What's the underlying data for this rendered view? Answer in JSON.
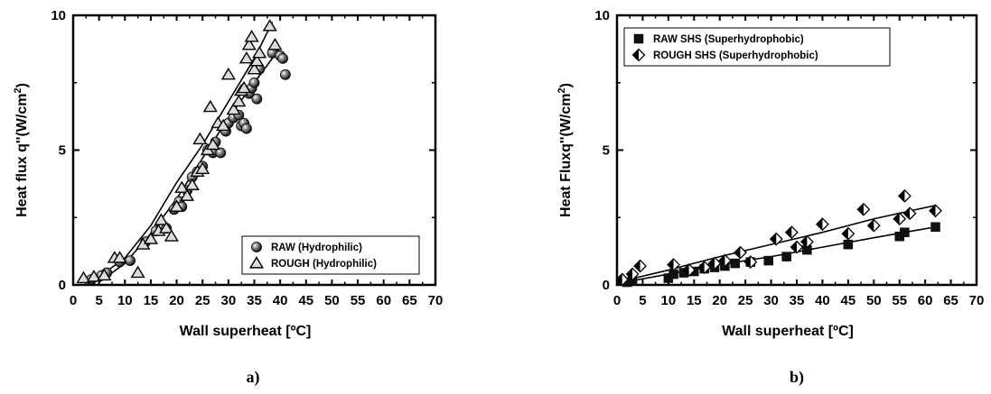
{
  "chart_data": [
    {
      "type": "scatter",
      "panel_label": "a)",
      "xlabel": "Wall superheat [ºC]",
      "ylabel": "Heat flux q''(W/cm²)",
      "ylabel_main": "Heat flux q''(W/cm",
      "ylabel_sup": "2",
      "ylabel_end": ")",
      "xlim": [
        0,
        70
      ],
      "ylim": [
        0,
        10
      ],
      "xticks": [
        "0",
        "5",
        "10",
        "15",
        "20",
        "25",
        "30",
        "35",
        "40",
        "45",
        "50",
        "55",
        "60",
        "65",
        "70"
      ],
      "yticks": [
        "0",
        "5",
        "10"
      ],
      "legend_position": "bottom-right",
      "series": [
        {
          "name": "RAW (Hydrophilic)",
          "marker": "sphere",
          "x": [
            3.5,
            5.5,
            6.5,
            9,
            11,
            14,
            16,
            18,
            19.5,
            20.5,
            21,
            22,
            23,
            24,
            25,
            26,
            27,
            27.5,
            28.5,
            29.5,
            30,
            31,
            32,
            32.5,
            33,
            33.5,
            34,
            34.5,
            35,
            35.5,
            36,
            38.5,
            40,
            40.5,
            41
          ],
          "y": [
            0.2,
            0.35,
            0.45,
            0.85,
            0.9,
            1.6,
            2.0,
            2.1,
            2.8,
            3.1,
            2.9,
            3.5,
            4.0,
            4.2,
            4.4,
            5.0,
            4.9,
            5.3,
            4.9,
            5.7,
            6.0,
            6.2,
            6.3,
            5.9,
            6.0,
            5.8,
            7.1,
            7.3,
            7.5,
            6.9,
            8.0,
            8.6,
            8.5,
            8.4,
            7.8
          ],
          "fit_x": [
            5,
            10,
            15,
            20,
            25,
            30,
            35,
            40
          ],
          "fit_y": [
            0.1,
            0.8,
            1.9,
            3.2,
            4.7,
            6.2,
            7.5,
            8.8
          ]
        },
        {
          "name": "ROUGH (Hydrophilic)",
          "marker": "triangle",
          "x": [
            2,
            4,
            6,
            8,
            9,
            12.5,
            13.5,
            15,
            16.5,
            17,
            18,
            19,
            20,
            21,
            22,
            23,
            24,
            24.5,
            25,
            26,
            26.5,
            27,
            28,
            29,
            30,
            31,
            32,
            32.5,
            33,
            33.5,
            34,
            34.5,
            35,
            35.5,
            36,
            38,
            39
          ],
          "y": [
            0.25,
            0.3,
            0.35,
            1.0,
            1.0,
            0.45,
            1.5,
            1.7,
            2.0,
            2.4,
            2.1,
            1.8,
            2.9,
            3.6,
            3.3,
            3.7,
            4.2,
            5.4,
            4.3,
            5.0,
            6.6,
            5.2,
            6.0,
            5.9,
            7.8,
            6.5,
            6.8,
            7.2,
            7.3,
            8.4,
            8.9,
            9.2,
            8.0,
            8.3,
            8.6,
            9.6,
            8.9
          ],
          "fit_x": [
            2,
            5,
            10,
            15,
            20,
            25,
            30,
            35,
            38.5
          ],
          "fit_y": [
            0.1,
            0.3,
            1.0,
            2.2,
            3.8,
            5.2,
            6.8,
            8.4,
            9.75
          ]
        }
      ]
    },
    {
      "type": "scatter",
      "panel_label": "b)",
      "xlabel": "Wall superheat [ºC]",
      "ylabel": "Heat Fluxq''(W/cm²)",
      "ylabel_main": "Heat Fluxq''(W/cm",
      "ylabel_sup": "2",
      "ylabel_end": ")",
      "xlim": [
        0,
        70
      ],
      "ylim": [
        0,
        10
      ],
      "xticks": [
        "0",
        "5",
        "10",
        "15",
        "20",
        "25",
        "30",
        "35",
        "40",
        "45",
        "50",
        "55",
        "60",
        "65",
        "70"
      ],
      "yticks": [
        "0",
        "5",
        "10"
      ],
      "legend_position": "top-left",
      "series": [
        {
          "name": "RAW SHS (Superhydrophobic)",
          "marker": "square",
          "x": [
            2,
            3,
            10,
            11,
            13,
            15,
            17,
            19,
            21,
            23,
            26,
            29.5,
            33,
            37,
            45,
            55,
            56,
            62
          ],
          "y": [
            0.1,
            0.15,
            0.25,
            0.4,
            0.45,
            0.5,
            0.6,
            0.65,
            0.7,
            0.8,
            0.85,
            0.9,
            1.05,
            1.3,
            1.5,
            1.8,
            1.95,
            2.15
          ],
          "fit_x": [
            0,
            10,
            20,
            30,
            40,
            50,
            62
          ],
          "fit_y": [
            0.05,
            0.4,
            0.75,
            1.05,
            1.4,
            1.75,
            2.15
          ]
        },
        {
          "name": "ROUGH SHS (Superhydrophobic)",
          "marker": "diamond",
          "x": [
            1,
            3,
            4.5,
            11,
            14,
            17,
            19,
            21,
            24,
            26,
            31,
            34,
            35,
            37,
            40,
            45,
            48,
            50,
            55,
            56,
            57,
            62
          ],
          "y": [
            0.2,
            0.4,
            0.7,
            0.75,
            0.55,
            0.65,
            0.8,
            0.9,
            1.2,
            0.85,
            1.7,
            1.95,
            1.4,
            1.6,
            2.25,
            1.9,
            2.8,
            2.2,
            2.45,
            3.3,
            2.65,
            2.75
          ],
          "fit_x": [
            0,
            10,
            20,
            30,
            40,
            50,
            62
          ],
          "fit_y": [
            0.1,
            0.55,
            1.05,
            1.5,
            1.95,
            2.45,
            2.95
          ]
        }
      ]
    }
  ]
}
